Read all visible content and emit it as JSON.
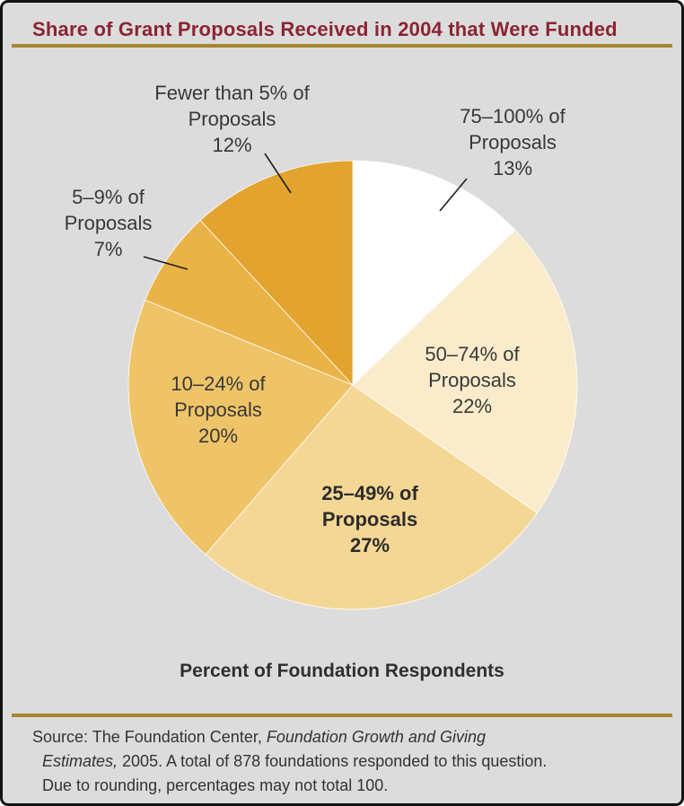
{
  "figure": {
    "title": "Share of Grant Proposals Received in 2004 that Were Funded",
    "caption": "Percent of Foundation Respondents",
    "source": {
      "line1_normal": "Source: The Foundation Center, ",
      "line1_italic": "Foundation Growth and Giving",
      "line2_italic": "Estimates,",
      "line2_normal": " 2005. A total of 878 foundations responded to this question.",
      "line3": "Due to rounding, percentages may not total 100."
    },
    "colors": {
      "title": "#8b2433",
      "rule": "#a5862f",
      "background": "#dcdcdc",
      "leader_line": "#1f1f1f"
    }
  },
  "chart_data": {
    "type": "pie",
    "title": "Share of Grant Proposals Received in 2004 that Were Funded",
    "unit_label": "Percent of Foundation Respondents",
    "start_angle": "12 o'clock",
    "direction": "clockwise",
    "legend_position": "labels on and around pie",
    "slices": [
      {
        "category": "75–100% of Proposals",
        "value": 13,
        "color": "#ffffff",
        "label_lines": [
          "75–100% of",
          "Proposals",
          "13%"
        ]
      },
      {
        "category": "50–74% of Proposals",
        "value": 22,
        "color": "#faeccb",
        "label_lines": [
          "50–74% of",
          "Proposals",
          "22%"
        ]
      },
      {
        "category": "25–49% of Proposals",
        "value": 27,
        "color": "#f5d795",
        "label_lines": [
          "25–49% of",
          "Proposals",
          "27%"
        ]
      },
      {
        "category": "10–24% of Proposals",
        "value": 20,
        "color": "#efc468",
        "label_lines": [
          "10–24% of",
          "Proposals",
          "20%"
        ]
      },
      {
        "category": "5–9% of Proposals",
        "value": 7,
        "color": "#e9b348",
        "label_lines": [
          "5–9% of",
          "Proposals",
          "7%"
        ]
      },
      {
        "category": "Fewer than 5% of Proposals",
        "value": 12,
        "color": "#e2a42e",
        "label_lines": [
          "Fewer than 5% of",
          "Proposals",
          "12%"
        ]
      }
    ]
  }
}
